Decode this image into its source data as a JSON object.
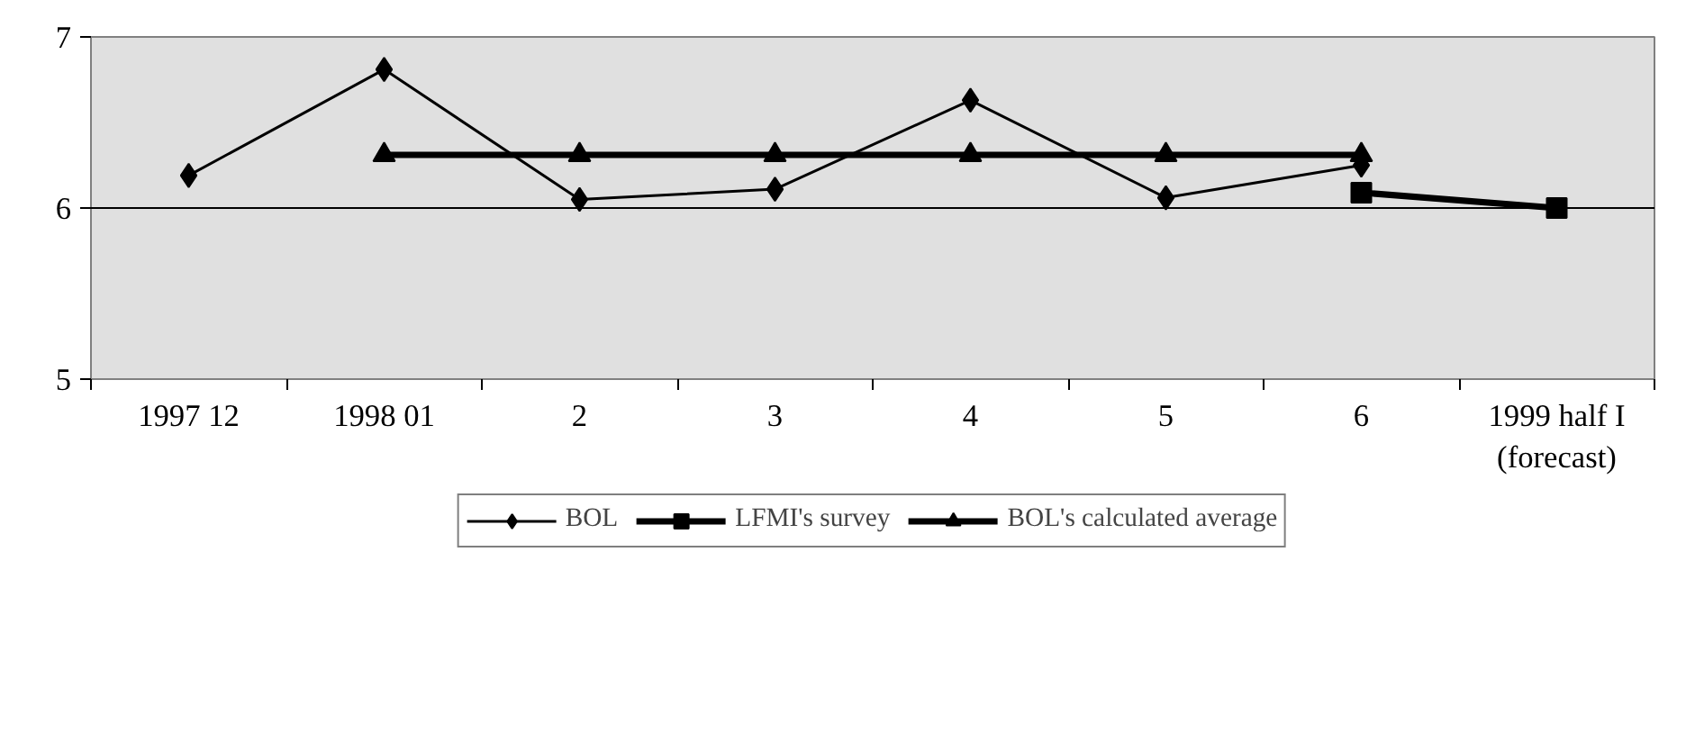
{
  "chart_data": {
    "type": "line",
    "categories": [
      "1997 12",
      "1998 01",
      "2",
      "3",
      "4",
      "5",
      "6",
      "1999 half I\n(forecast)"
    ],
    "series": [
      {
        "name": "BOL",
        "color": "#000000",
        "marker": "diamond",
        "values": [
          6.19,
          6.81,
          6.05,
          6.11,
          6.63,
          6.06,
          6.25,
          null
        ]
      },
      {
        "name": "LFMI's survey",
        "color": "#000000",
        "marker": "square",
        "values": [
          null,
          null,
          null,
          null,
          null,
          null,
          6.09,
          6.0
        ]
      },
      {
        "name": "BOL's calculated average",
        "color": "#000000",
        "marker": "triangle",
        "values": [
          null,
          6.31,
          6.31,
          6.31,
          6.31,
          6.31,
          6.31,
          null
        ]
      }
    ],
    "ylim": [
      5,
      7
    ],
    "yticks": [
      5,
      6,
      7
    ],
    "ref_lines": [
      {
        "axis": "y",
        "value": 6,
        "color": "#000000"
      }
    ],
    "legend": "bottom"
  }
}
